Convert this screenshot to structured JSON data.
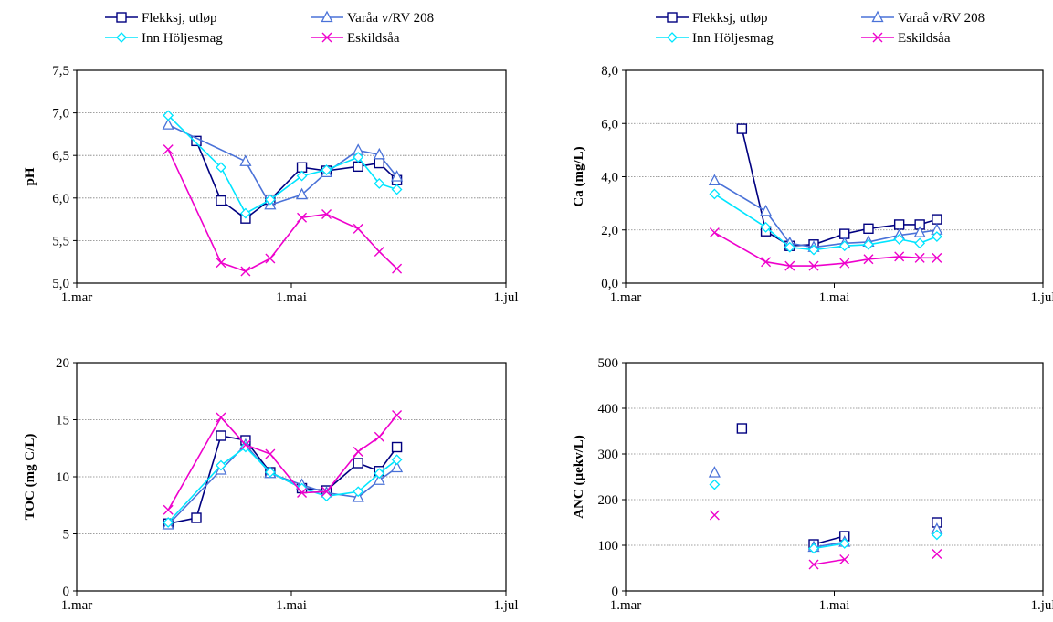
{
  "colors": {
    "Flekksj, utløp": "#000080",
    "Varåa v/RV 208": "#4A72D8",
    "Varaå v/RV 208": "#4A72D8",
    "Inn Höljesmag": "#00E5FF",
    "Eskildsåa": "#EE00CC",
    "grid": "#808080",
    "axis": "#000000",
    "background": "#ffffff"
  },
  "chart_data": [
    {
      "type": "line",
      "xlabel": "",
      "ylabel": "pH",
      "ylim": [
        5.0,
        7.5
      ],
      "ytick_labels": [
        "5,0",
        "5,5",
        "6,0",
        "6,5",
        "7,0",
        "7,5"
      ],
      "x_tick_labels": [
        "1.mar",
        "1.mai",
        "1.jul"
      ],
      "grid": true,
      "legend": [
        "Flekksj, utløp",
        "Varåa v/RV 208",
        "Inn Höljesmag",
        "Eskildsåa"
      ],
      "series": [
        {
          "name": "Flekksj, utløp",
          "marker": "square",
          "x": [
            "2022-04-04",
            "2022-04-11",
            "2022-04-18",
            "2022-04-25",
            "2022-05-04",
            "2022-05-11",
            "2022-05-20",
            "2022-05-26",
            "2022-05-31"
          ],
          "values": [
            6.67,
            5.97,
            5.76,
            5.98,
            6.36,
            6.32,
            6.37,
            6.41,
            6.21
          ]
        },
        {
          "name": "Varåa v/RV 208",
          "marker": "triangle",
          "x": [
            "2022-03-27",
            "2022-04-18",
            "2022-04-25",
            "2022-05-04",
            "2022-05-11",
            "2022-05-20",
            "2022-05-26",
            "2022-05-31"
          ],
          "values": [
            6.86,
            6.43,
            5.92,
            6.04,
            6.3,
            6.56,
            6.51,
            6.25
          ]
        },
        {
          "name": "Inn Höljesmag",
          "marker": "diamond",
          "x": [
            "2022-03-27",
            "2022-04-11",
            "2022-04-18",
            "2022-04-25",
            "2022-05-04",
            "2022-05-11",
            "2022-05-20",
            "2022-05-26",
            "2022-05-31"
          ],
          "values": [
            6.97,
            6.36,
            5.82,
            5.98,
            6.26,
            6.33,
            6.48,
            6.17,
            6.1
          ]
        },
        {
          "name": "Eskildsåa",
          "marker": "x",
          "x": [
            "2022-03-27",
            "2022-04-11",
            "2022-04-18",
            "2022-04-25",
            "2022-05-04",
            "2022-05-11",
            "2022-05-20",
            "2022-05-26",
            "2022-05-31"
          ],
          "values": [
            6.57,
            5.24,
            5.14,
            5.29,
            5.77,
            5.81,
            5.64,
            5.37,
            5.17
          ]
        }
      ]
    },
    {
      "type": "line",
      "xlabel": "",
      "ylabel": "Ca (mg/L)",
      "ylim": [
        0.0,
        8.0
      ],
      "ytick_labels": [
        "0,0",
        "2,0",
        "4,0",
        "6,0",
        "8,0"
      ],
      "x_tick_labels": [
        "1.mar",
        "1.mai",
        "1.jul"
      ],
      "grid": true,
      "legend": [
        "Flekksj, utløp",
        "Varaå v/RV 208",
        "Inn Höljesmag",
        "Eskildsåa"
      ],
      "series": [
        {
          "name": "Flekksj, utløp",
          "marker": "square",
          "x": [
            "2022-04-04",
            "2022-04-11",
            "2022-04-18",
            "2022-04-25",
            "2022-05-04",
            "2022-05-11",
            "2022-05-20",
            "2022-05-26",
            "2022-05-31"
          ],
          "values": [
            5.8,
            1.95,
            1.4,
            1.45,
            1.85,
            2.05,
            2.2,
            2.2,
            2.4
          ]
        },
        {
          "name": "Varaå v/RV 208",
          "marker": "triangle",
          "x": [
            "2022-03-27",
            "2022-04-11",
            "2022-04-18",
            "2022-04-25",
            "2022-05-04",
            "2022-05-11",
            "2022-05-20",
            "2022-05-26",
            "2022-05-31"
          ],
          "values": [
            3.85,
            2.7,
            1.5,
            1.35,
            1.5,
            1.55,
            1.8,
            1.9,
            2.0
          ]
        },
        {
          "name": "Inn Höljesmag",
          "marker": "diamond",
          "x": [
            "2022-03-27",
            "2022-04-11",
            "2022-04-18",
            "2022-04-25",
            "2022-05-04",
            "2022-05-11",
            "2022-05-20",
            "2022-05-26",
            "2022-05-31"
          ],
          "values": [
            3.35,
            2.1,
            1.35,
            1.25,
            1.4,
            1.45,
            1.65,
            1.5,
            1.75
          ]
        },
        {
          "name": "Eskildsåa",
          "marker": "x",
          "x": [
            "2022-03-27",
            "2022-04-11",
            "2022-04-18",
            "2022-04-25",
            "2022-05-04",
            "2022-05-11",
            "2022-05-20",
            "2022-05-26",
            "2022-05-31"
          ],
          "values": [
            1.9,
            0.8,
            0.65,
            0.65,
            0.75,
            0.9,
            1.0,
            0.95,
            0.95
          ]
        }
      ]
    },
    {
      "type": "line",
      "xlabel": "",
      "ylabel": "TOC (mg C/L)",
      "ylim": [
        0,
        20
      ],
      "ytick_labels": [
        "0",
        "5",
        "10",
        "15",
        "20"
      ],
      "x_tick_labels": [
        "1.mar",
        "1.mai",
        "1.jul"
      ],
      "grid": true,
      "legend": [],
      "series": [
        {
          "name": "Flekksj, utløp",
          "marker": "square",
          "x": [
            "2022-03-27",
            "2022-04-04",
            "2022-04-11",
            "2022-04-18",
            "2022-04-25",
            "2022-05-04",
            "2022-05-11",
            "2022-05-20",
            "2022-05-26",
            "2022-05-31"
          ],
          "values": [
            5.9,
            6.4,
            13.6,
            13.2,
            10.4,
            9.0,
            8.8,
            11.2,
            10.5,
            12.6
          ]
        },
        {
          "name": "Varåa v/RV 208",
          "marker": "triangle",
          "x": [
            "2022-03-27",
            "2022-04-11",
            "2022-04-18",
            "2022-04-25",
            "2022-05-04",
            "2022-05-11",
            "2022-05-20",
            "2022-05-26",
            "2022-05-31"
          ],
          "values": [
            5.8,
            10.6,
            12.8,
            10.3,
            9.3,
            8.6,
            8.2,
            9.7,
            10.8
          ]
        },
        {
          "name": "Inn Höljesmag",
          "marker": "diamond",
          "x": [
            "2022-03-27",
            "2022-04-11",
            "2022-04-18",
            "2022-04-25",
            "2022-05-04",
            "2022-05-11",
            "2022-05-20",
            "2022-05-26",
            "2022-05-31"
          ],
          "values": [
            6.0,
            11.0,
            12.6,
            10.4,
            9.0,
            8.3,
            8.7,
            10.3,
            11.5
          ]
        },
        {
          "name": "Eskildsåa",
          "marker": "x",
          "x": [
            "2022-03-27",
            "2022-04-11",
            "2022-04-18",
            "2022-04-25",
            "2022-05-04",
            "2022-05-11",
            "2022-05-20",
            "2022-05-26",
            "2022-05-31"
          ],
          "values": [
            7.1,
            15.2,
            12.8,
            12.0,
            8.6,
            8.7,
            12.2,
            13.5,
            15.4
          ]
        }
      ]
    },
    {
      "type": "line",
      "xlabel": "",
      "ylabel": "ANC (µekv/L)",
      "ylim": [
        0,
        500
      ],
      "ytick_labels": [
        "0",
        "100",
        "200",
        "300",
        "400",
        "500"
      ],
      "x_tick_labels": [
        "1.mar",
        "1.mai",
        "1.jul"
      ],
      "grid": true,
      "legend": [],
      "series": [
        {
          "name": "Flekksj, utløp",
          "marker": "square",
          "x": [
            "2022-04-04",
            "2022-04-25",
            "2022-05-04",
            "2022-05-31"
          ],
          "values": [
            356,
            102,
            120,
            150
          ],
          "segments": [
            [
              1,
              2
            ]
          ]
        },
        {
          "name": "Varåa v/RV 208",
          "marker": "triangle",
          "x": [
            "2022-03-27",
            "2022-04-25",
            "2022-05-04",
            "2022-05-31"
          ],
          "values": [
            259,
            96,
            107,
            135
          ],
          "segments": [
            [
              1,
              2
            ]
          ]
        },
        {
          "name": "Inn Höljesmag",
          "marker": "diamond",
          "x": [
            "2022-03-27",
            "2022-04-25",
            "2022-05-04",
            "2022-05-31"
          ],
          "values": [
            233,
            93,
            104,
            123
          ],
          "segments": [
            [
              1,
              2
            ]
          ]
        },
        {
          "name": "Eskildsåa",
          "marker": "x",
          "x": [
            "2022-03-27",
            "2022-04-25",
            "2022-05-04",
            "2022-05-31"
          ],
          "values": [
            166,
            58,
            69,
            81
          ],
          "segments": [
            [
              1,
              2
            ]
          ]
        }
      ]
    }
  ]
}
